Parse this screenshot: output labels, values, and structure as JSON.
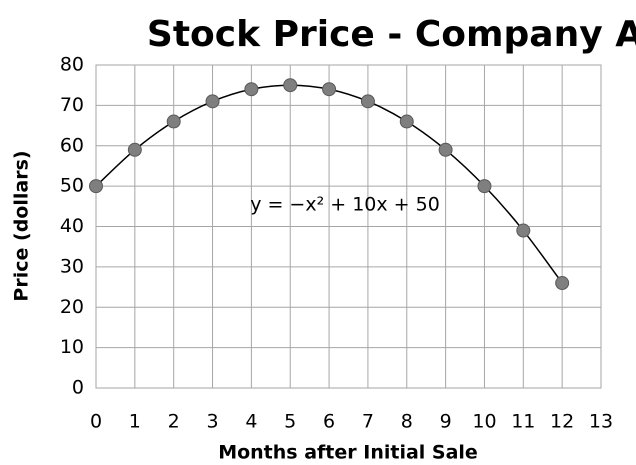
{
  "chart_data": {
    "type": "scatter",
    "title": "Stock Price - Company A",
    "x_label": "Months after Initial Sale",
    "y_label": "Price (dollars)",
    "x": [
      0,
      1,
      2,
      3,
      4,
      5,
      6,
      7,
      8,
      9,
      10,
      11,
      12
    ],
    "series": [
      {
        "color": "#7f7f7f",
        "values": [
          50,
          59,
          66,
          71,
          74,
          75,
          74,
          71,
          66,
          59,
          50,
          39,
          26
        ]
      }
    ],
    "xlim": [
      0,
      13
    ],
    "xticks": [
      0,
      1,
      2,
      3,
      4,
      5,
      6,
      7,
      8,
      9,
      10,
      11,
      12,
      13
    ],
    "ylim": [
      0,
      80
    ],
    "yticks": [
      0,
      10,
      20,
      30,
      40,
      50,
      60,
      70,
      80
    ],
    "grid": true,
    "trendline": true,
    "annotation": "y = −x² + 10x + 50"
  }
}
